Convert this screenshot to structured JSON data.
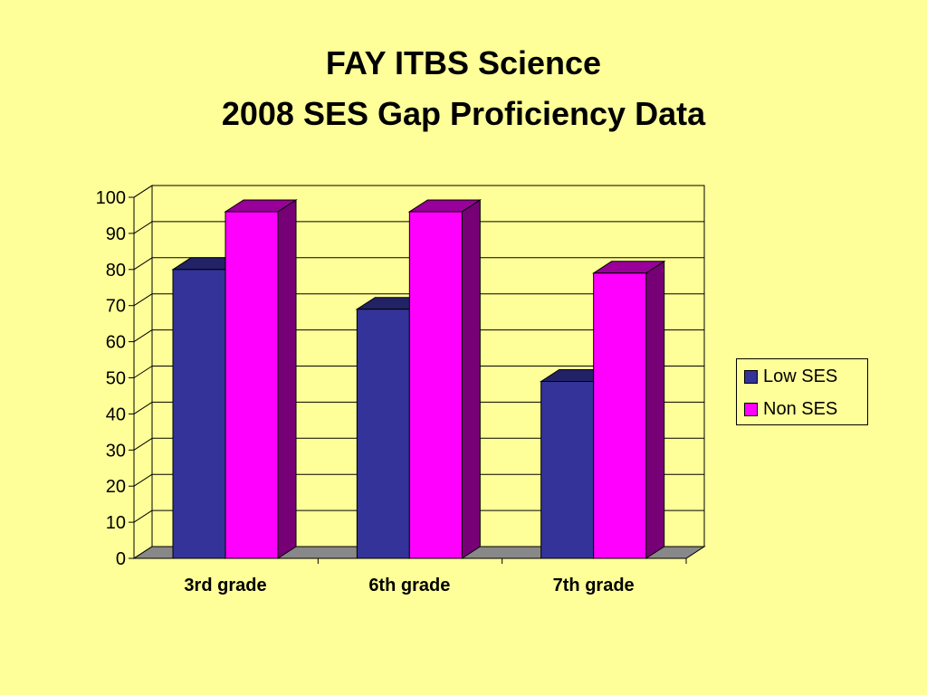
{
  "chart_data": {
    "type": "bar",
    "title": "FAY ITBS Science",
    "subtitle": "2008 SES Gap Proficiency Data",
    "categories": [
      "3rd grade",
      "6th grade",
      "7th grade"
    ],
    "series": [
      {
        "name": "Low SES",
        "values": [
          80,
          69,
          49
        ],
        "color": "#333399"
      },
      {
        "name": "Non SES",
        "values": [
          96,
          96,
          79
        ],
        "color": "#FF00FF"
      }
    ],
    "xlabel": "",
    "ylabel": "",
    "ylim": [
      0,
      100
    ],
    "yticks": [
      "0",
      "10",
      "20",
      "30",
      "40",
      "50",
      "60",
      "70",
      "80",
      "90",
      "100"
    ],
    "grid": true,
    "legend_position": "right",
    "three_d": true
  }
}
